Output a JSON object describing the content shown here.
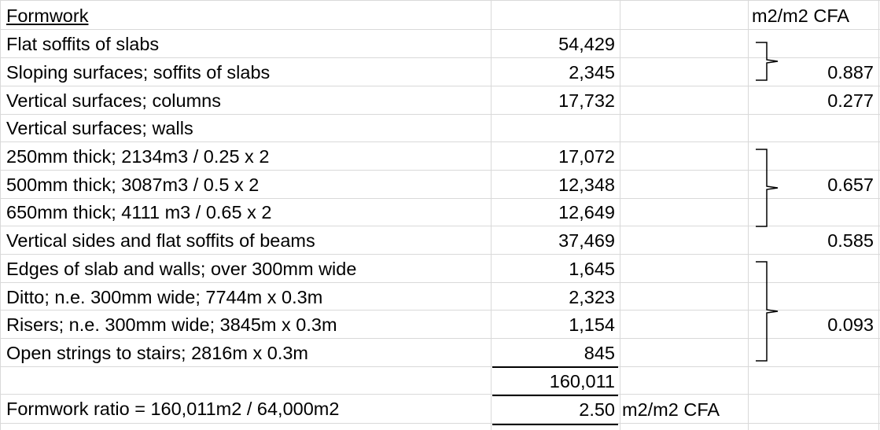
{
  "header": {
    "title": "Formwork",
    "ratio_header": "m2/m2 CFA"
  },
  "rows": [
    {
      "description": "Flat soffits of slabs",
      "value": "54,429"
    },
    {
      "description": "Sloping surfaces; soffits of slabs",
      "value": "2,345",
      "ratio": "0.887"
    },
    {
      "description": "Vertical surfaces; columns",
      "value": "17,732",
      "ratio": "0.277"
    },
    {
      "description": "Vertical surfaces; walls"
    },
    {
      "description": "250mm thick; 2134m3 / 0.25 x 2",
      "value": "17,072"
    },
    {
      "description": "500mm thick; 3087m3 / 0.5 x 2",
      "value": "12,348",
      "ratio": "0.657"
    },
    {
      "description": "650mm thick; 4111 m3 / 0.65 x 2",
      "value": "12,649"
    },
    {
      "description": "Vertical sides and flat soffits of beams",
      "value": "37,469",
      "ratio": "0.585"
    },
    {
      "description": "Edges of slab and walls; over 300mm wide",
      "value": "1,645"
    },
    {
      "description": "Ditto; n.e. 300mm wide; 7744m x 0.3m",
      "value": "2,323"
    },
    {
      "description": "Risers; n.e. 300mm wide; 3845m x 0.3m",
      "value": "1,154",
      "ratio": "0.093"
    },
    {
      "description": "Open strings to stairs; 2816m x 0.3m",
      "value": "845"
    }
  ],
  "total": {
    "value": "160,011"
  },
  "summary": {
    "description": "Formwork ratio = 160,011m2 / 64,000m2",
    "value": "2.50",
    "unit": "m2/m2 CFA"
  }
}
